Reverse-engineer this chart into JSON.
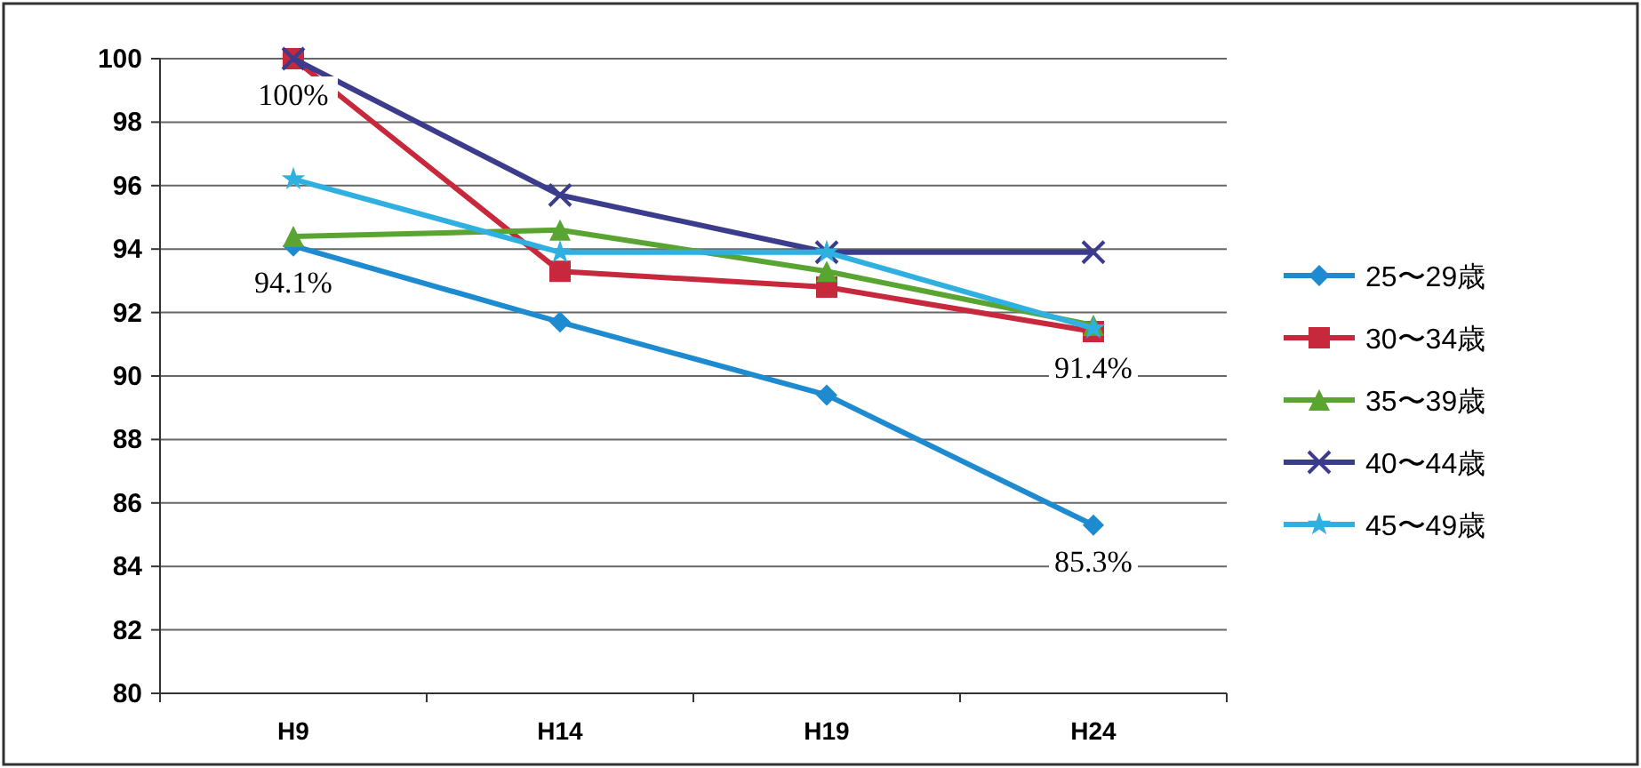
{
  "chart_data": {
    "type": "line",
    "categories": [
      "H9",
      "H14",
      "H19",
      "H24"
    ],
    "series": [
      {
        "name": "25〜29歳",
        "color": "#1e8ad0",
        "marker": "diamond",
        "values": [
          94.1,
          91.7,
          89.4,
          85.3
        ]
      },
      {
        "name": "30〜34歳",
        "color": "#c8283c",
        "marker": "square",
        "values": [
          100,
          93.3,
          92.8,
          91.4
        ]
      },
      {
        "name": "35〜39歳",
        "color": "#5aa532",
        "marker": "triangle",
        "values": [
          94.4,
          94.6,
          93.3,
          91.6
        ]
      },
      {
        "name": "40〜44歳",
        "color": "#3c3c8c",
        "marker": "cross",
        "values": [
          100,
          95.7,
          93.9,
          93.9
        ]
      },
      {
        "name": "45〜49歳",
        "color": "#30b0e0",
        "marker": "star",
        "values": [
          96.2,
          93.9,
          93.9,
          91.5
        ]
      }
    ],
    "ylim": [
      80,
      100
    ],
    "yticks": [
      80,
      82,
      84,
      86,
      88,
      90,
      92,
      94,
      96,
      98,
      100
    ],
    "grid": "y",
    "legend": "right",
    "annotations": [
      {
        "text": "100%",
        "x": "H9",
        "y": 100
      },
      {
        "text": "94.1%",
        "x": "H9",
        "y": 94.1
      },
      {
        "text": "91.4%",
        "x": "H24",
        "y": 91.4
      },
      {
        "text": "85.3%",
        "x": "H24",
        "y": 85.3
      }
    ]
  }
}
